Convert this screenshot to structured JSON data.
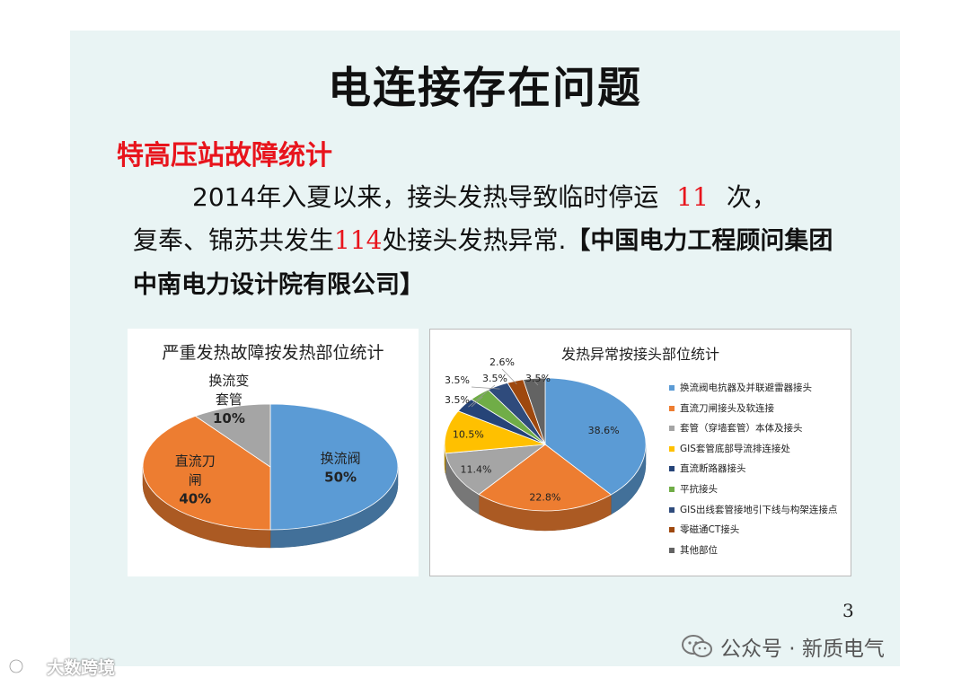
{
  "slide": {
    "title": "电连接存在问题",
    "subtitle": "特高压站故障统计",
    "para": {
      "part1": "2014年入夏以来，接头发热导致临时停运",
      "count1": "11",
      "part2": "次，",
      "part3": "复奉、锦苏共发生",
      "count2": "114",
      "part4": "处接头发热异常.",
      "source": "【中国电力工程顾问集团中南电力设计院有限公司】"
    },
    "page_number": "3"
  },
  "watermark": {
    "wechat": "公众号 · 新质电气",
    "corner": "大数跨境"
  },
  "colors": {
    "blue": "#5b9bd5",
    "orange": "#ed7d31",
    "gray": "#a5a5a5",
    "yellow": "#ffc000",
    "dark_blue": "#264478",
    "green": "#70ad47",
    "navy": "#2f4b7c",
    "brown": "#9e480e",
    "dark_gray": "#636363",
    "red_text": "#e8141c",
    "slide_bg": "#e9f4f4"
  },
  "chart_data": [
    {
      "type": "pie",
      "title": "严重发热故障按发热部位统计",
      "slices": [
        {
          "name": "换流阀",
          "value": 50,
          "label": "50%",
          "color": "#5b9bd5"
        },
        {
          "name": "直流刀闸",
          "value": 40,
          "label": "40%",
          "color": "#ed7d31"
        },
        {
          "name": "换流变套管",
          "value": 10,
          "label": "10%",
          "color": "#a5a5a5"
        }
      ]
    },
    {
      "type": "pie",
      "title": "发热异常按接头部位统计",
      "legend_position": "right",
      "slices": [
        {
          "name": "换流阀电抗器及并联避雷器接头",
          "value": 38.6,
          "label": "38.6%",
          "color": "#5b9bd5"
        },
        {
          "name": "直流刀闸接头及软连接",
          "value": 22.8,
          "label": "22.8%",
          "color": "#ed7d31"
        },
        {
          "name": "套管（穿墙套管）本体及接头",
          "value": 11.4,
          "label": "11.4%",
          "color": "#a5a5a5"
        },
        {
          "name": "GIS套管底部导流排连接处",
          "value": 10.5,
          "label": "10.5%",
          "color": "#ffc000"
        },
        {
          "name": "直流断路器接头",
          "value": 3.5,
          "label": "3.5%",
          "color": "#264478"
        },
        {
          "name": "平抗接头",
          "value": 3.5,
          "label": "3.5%",
          "color": "#70ad47"
        },
        {
          "name": "GIS出线套管接地引下线与构架连接点",
          "value": 3.5,
          "label": "3.5%",
          "color": "#2f4b7c"
        },
        {
          "name": "零磁通CT接头",
          "value": 2.6,
          "label": "2.6%",
          "color": "#9e480e"
        },
        {
          "name": "其他部位",
          "value": 3.5,
          "label": "3.5%",
          "color": "#636363"
        }
      ]
    }
  ]
}
